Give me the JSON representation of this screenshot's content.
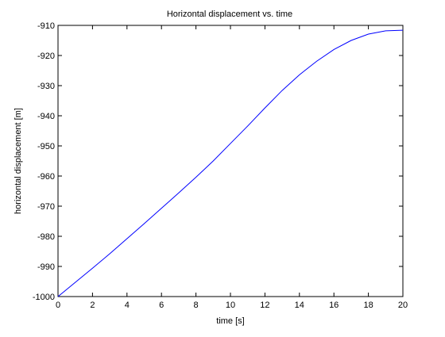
{
  "chart_data": {
    "type": "line",
    "title": "Horizontal displacement vs. time",
    "xlabel": "time [s]",
    "ylabel": "horizontal displacement [m]",
    "xlim": [
      0,
      20
    ],
    "ylim": [
      -1000,
      -910
    ],
    "xticks": [
      0,
      2,
      4,
      6,
      8,
      10,
      12,
      14,
      16,
      18,
      20
    ],
    "xtick_labels": [
      "0",
      "2",
      "4",
      "6",
      "8",
      "10",
      "12",
      "14",
      "16",
      "18",
      "20"
    ],
    "yticks": [
      -1000,
      -990,
      -980,
      -970,
      -960,
      -950,
      -940,
      -930,
      -920,
      -910
    ],
    "ytick_labels": [
      "-1000",
      "-990",
      "-980",
      "-970",
      "-960",
      "-950",
      "-940",
      "-930",
      "-920",
      "-910"
    ],
    "grid": false,
    "legend": "none",
    "series": [
      {
        "color": "#0000ff",
        "x": [
          0,
          1,
          2,
          3,
          4,
          5,
          6,
          7,
          8,
          9,
          10,
          11,
          12,
          13,
          14,
          15,
          16,
          17,
          18,
          19,
          20
        ],
        "y": [
          -1000,
          -995.3,
          -990.6,
          -985.8,
          -980.8,
          -975.8,
          -970.7,
          -965.6,
          -960.4,
          -955.0,
          -949.2,
          -943.4,
          -937.4,
          -931.6,
          -926.4,
          -921.9,
          -918.0,
          -915.0,
          -912.9,
          -911.8,
          -911.6
        ]
      }
    ]
  }
}
